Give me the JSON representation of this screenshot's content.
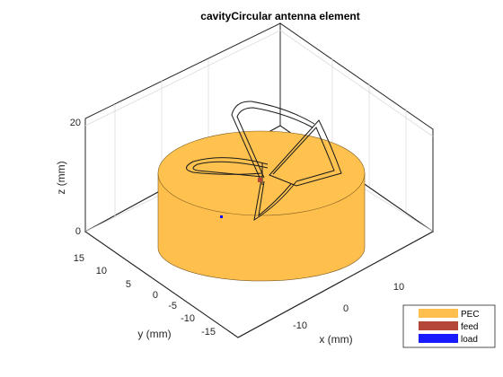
{
  "chart_data": {
    "type": "3d-surface",
    "title": "cavityCircular antenna element",
    "xlabel": "x (mm)",
    "ylabel": "y (mm)",
    "zlabel": "z (mm)",
    "x_ticks": [
      "-10",
      "0",
      "10"
    ],
    "y_ticks": [
      "15",
      "10",
      "5",
      "0",
      "-5",
      "-10",
      "-15"
    ],
    "z_ticks": [
      "20",
      "0"
    ],
    "xlim": [
      -18,
      18
    ],
    "ylim": [
      -18,
      18
    ],
    "zlim": [
      -8,
      25
    ],
    "grid": true,
    "legend_position": "bottom-right",
    "legend": [
      {
        "name": "PEC",
        "color": "#ffbf4d"
      },
      {
        "name": "feed",
        "color": "#b5473a"
      },
      {
        "name": "load",
        "color": "#0000ff"
      }
    ]
  }
}
